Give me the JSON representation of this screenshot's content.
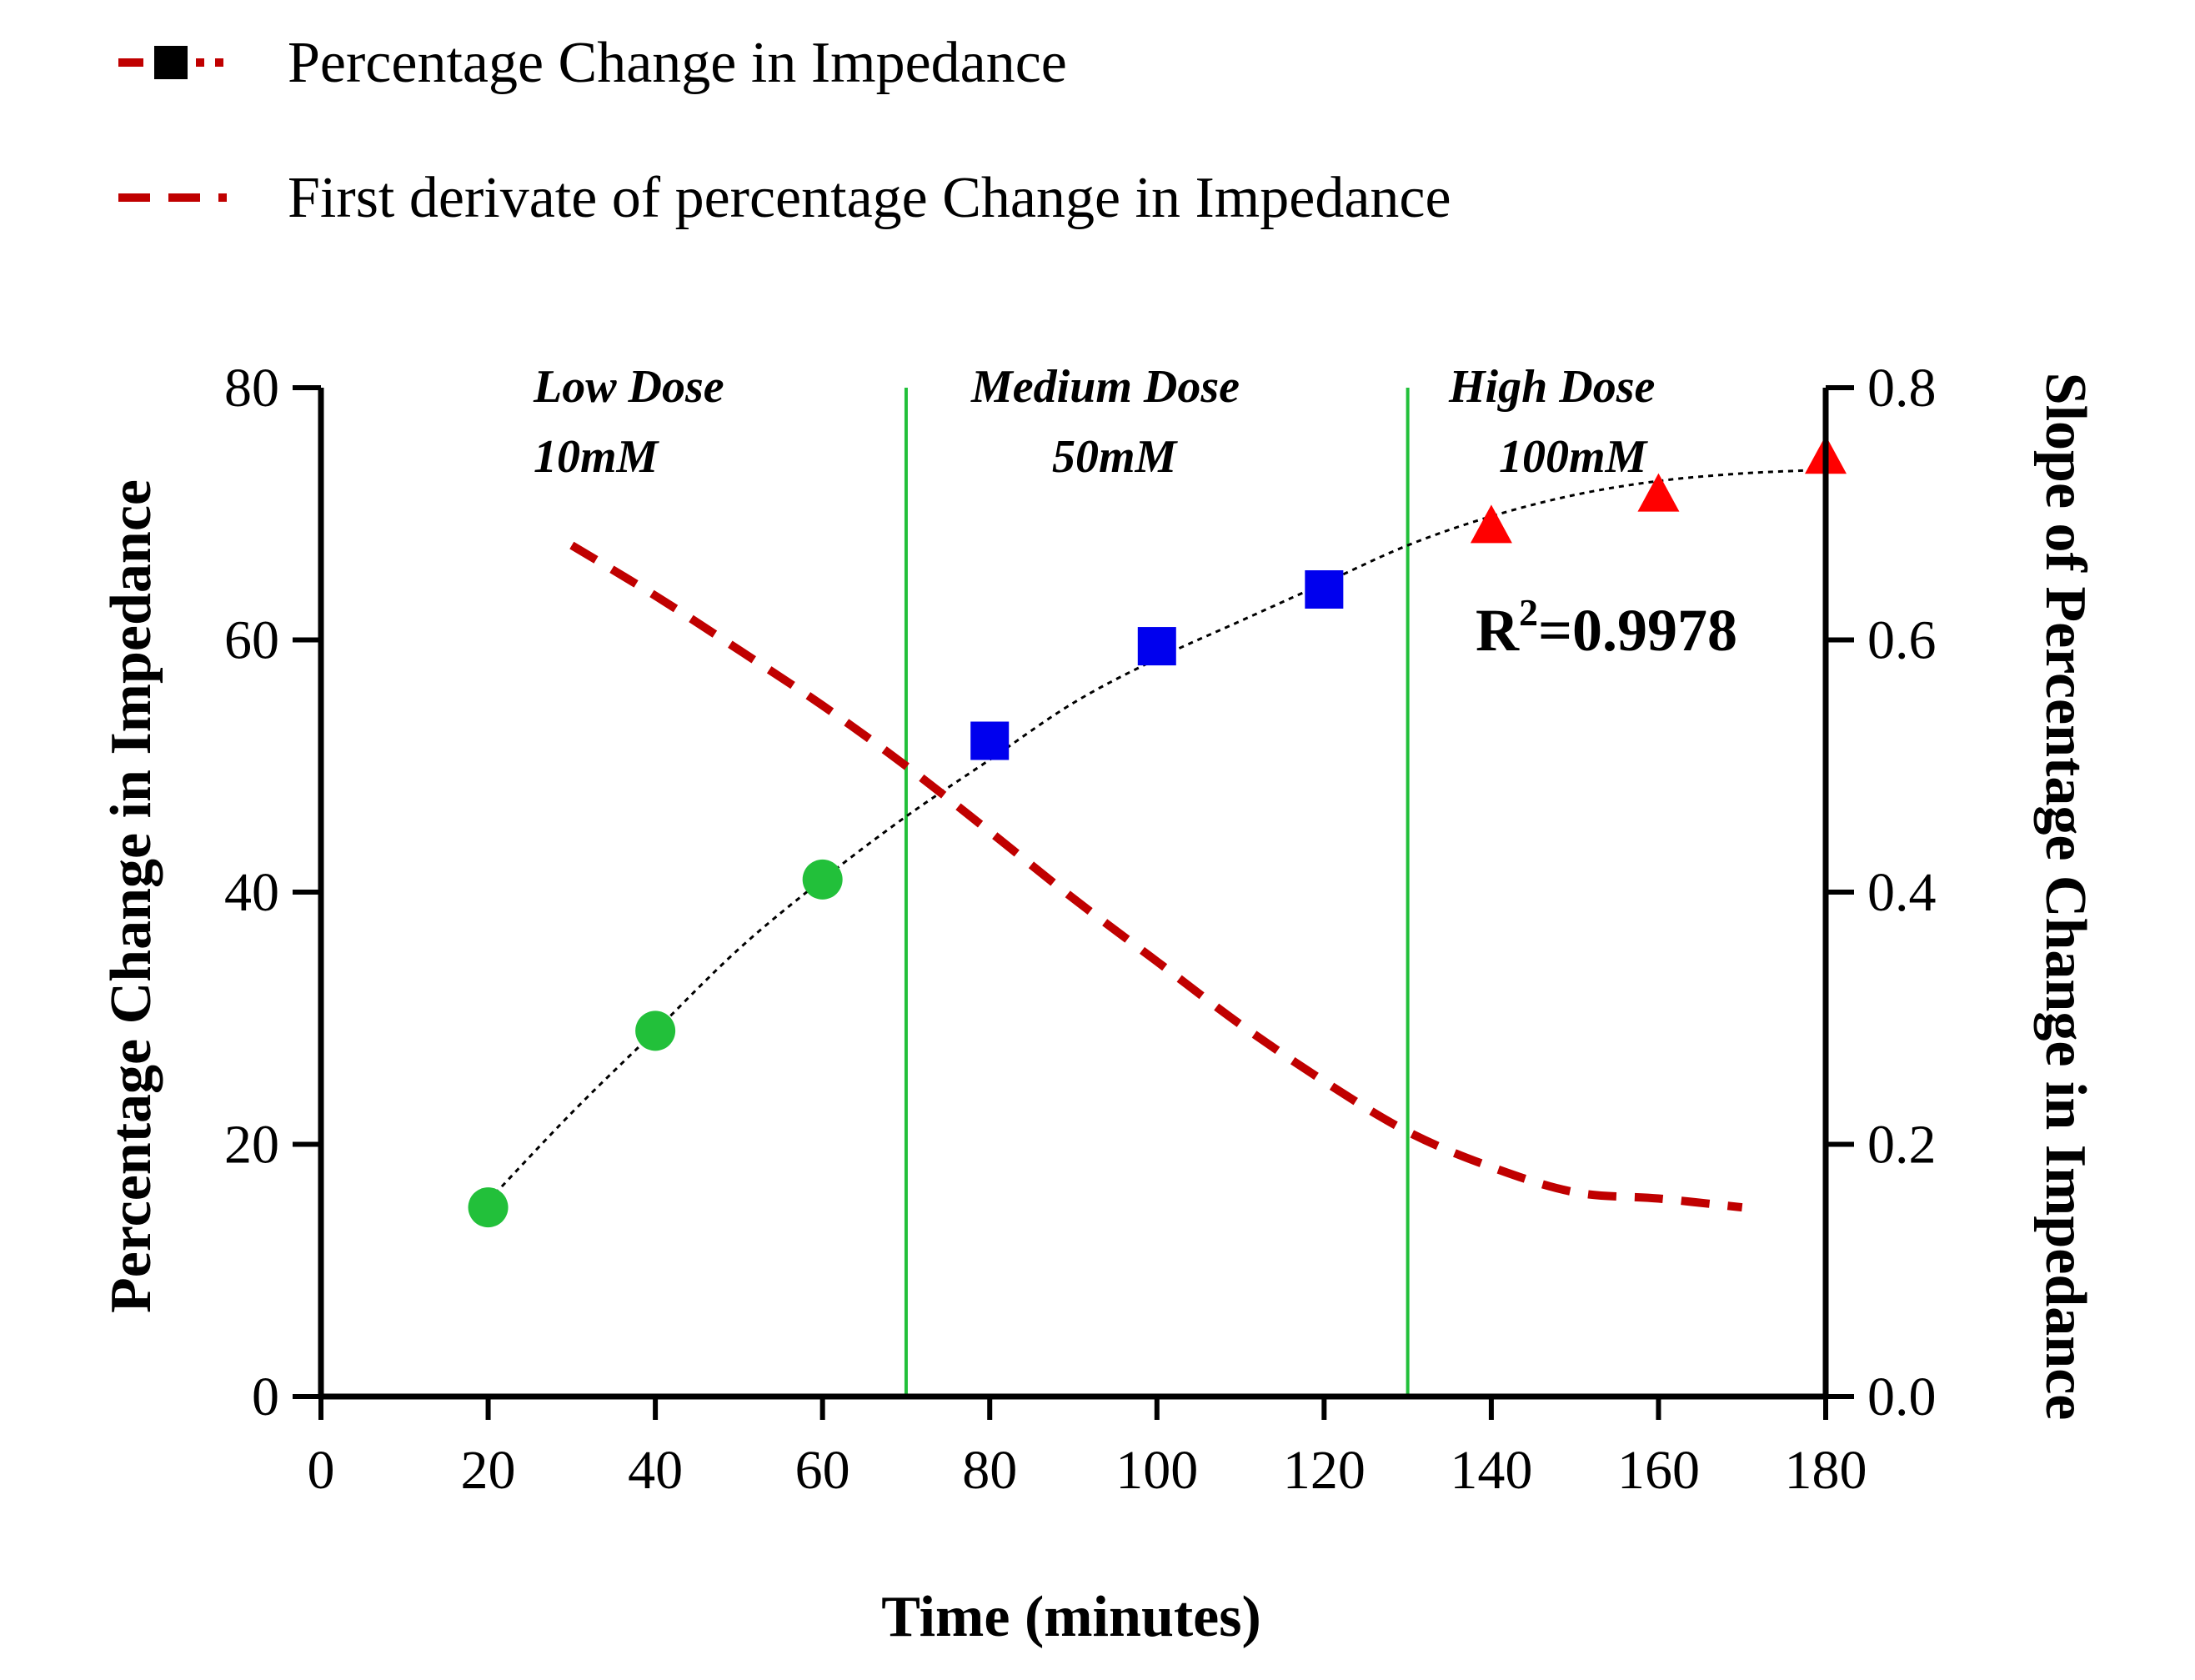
{
  "chart_data": {
    "type": "scatter",
    "title": "",
    "xlabel": "Time (minutes)",
    "ylabel_left": "Percentage Change in Impedance",
    "ylabel_right": "Slope of Percentage Change in Impedance",
    "xlim": [
      0,
      180
    ],
    "ylim_left": [
      0,
      80
    ],
    "ylim_right": [
      0,
      0.8
    ],
    "x_ticks": [
      0,
      20,
      40,
      60,
      80,
      100,
      120,
      140,
      160,
      180
    ],
    "x_tick_labels": [
      "0",
      "20",
      "40",
      "60",
      "80",
      "100",
      "120",
      "140",
      "160",
      "180"
    ],
    "y_left_ticks": [
      0,
      20,
      40,
      60,
      80
    ],
    "y_left_tick_labels": [
      "0",
      "20",
      "40",
      "60",
      "80"
    ],
    "y_right_ticks": [
      0,
      0.2,
      0.4,
      0.6,
      0.8
    ],
    "y_right_tick_labels": [
      "0.0",
      "0.2",
      "0.4",
      "0.6",
      "0.8"
    ],
    "grid": false,
    "legend_position": "top-left",
    "legend": [
      {
        "label": "Percentage Change in Impedance",
        "style": "dash-dot with square marker",
        "color": "#c00000"
      },
      {
        "label": "First derivate of percentage Change in Impedance",
        "style": "dashed",
        "color": "#c00000"
      }
    ],
    "dose_regions": [
      {
        "line1": "Low Dose",
        "line2": "10mM"
      },
      {
        "line1": "Medium Dose",
        "line2": "50mM"
      },
      {
        "line1": "High Dose",
        "line2": "100mM"
      }
    ],
    "dose_boundaries": [
      70,
      130
    ],
    "boundary_color": "#22c03a",
    "groups": [
      {
        "marker": "circle",
        "color": "#22c03a",
        "x": [
          20,
          40,
          60
        ],
        "y": [
          15,
          29,
          41
        ]
      },
      {
        "marker": "square",
        "color": "#0000ee",
        "x": [
          80,
          100,
          120
        ],
        "y": [
          52,
          59.5,
          64
        ]
      },
      {
        "marker": "triangle",
        "color": "#ff0000",
        "x": [
          140,
          160,
          180
        ],
        "y": [
          69,
          71.5,
          74.5
        ]
      }
    ],
    "fit_curve": {
      "axis": "left",
      "style": "dotted",
      "color": "#000000",
      "x": [
        20,
        30,
        40,
        50,
        60,
        70,
        80,
        90,
        100,
        110,
        120,
        130,
        140,
        150,
        160,
        170,
        180
      ],
      "y": [
        15.5,
        22.5,
        29,
        35.5,
        41,
        46,
        50.5,
        55,
        58.5,
        61.5,
        64.5,
        67.5,
        69.8,
        71.5,
        72.6,
        73.2,
        73.5
      ]
    },
    "derivative_series": {
      "name": "First derivate of percentage Change in Impedance",
      "axis": "right",
      "style": "dashed",
      "color": "#c00000",
      "x": [
        30,
        40,
        50,
        60,
        70,
        80,
        90,
        100,
        110,
        120,
        130,
        140,
        150,
        160,
        170
      ],
      "y": [
        0.675,
        0.635,
        0.592,
        0.548,
        0.5,
        0.448,
        0.395,
        0.345,
        0.295,
        0.25,
        0.21,
        0.182,
        0.162,
        0.157,
        0.15
      ]
    },
    "annotations": [
      {
        "text_base": "R",
        "text_sup": "2",
        "text_rest": "=0.9978"
      }
    ]
  }
}
